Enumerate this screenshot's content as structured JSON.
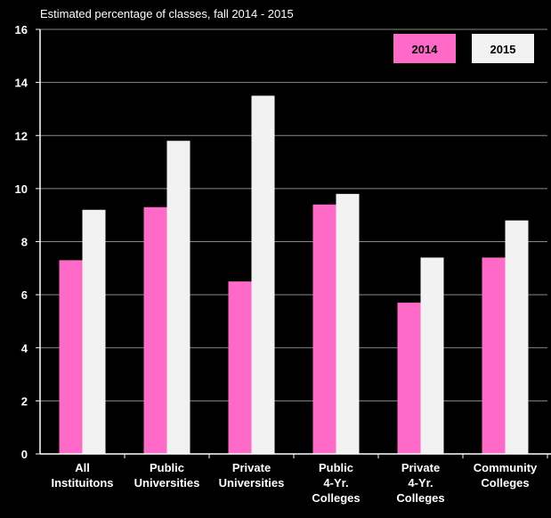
{
  "chart_data": {
    "type": "bar",
    "subtitle": "Estimated percentage of classes, fall 2014 - 2015",
    "categories": [
      [
        "All",
        "Instituitons"
      ],
      [
        "Public",
        "Universities"
      ],
      [
        "Private",
        "Universities"
      ],
      [
        "Public",
        "4-Yr.",
        "Colleges"
      ],
      [
        "Private",
        "4-Yr.",
        "Colleges"
      ],
      [
        "Community",
        "Colleges"
      ]
    ],
    "series": [
      {
        "name": "2014",
        "color": "#ff69c8",
        "values": [
          7.3,
          9.3,
          6.5,
          9.4,
          5.7,
          7.4
        ]
      },
      {
        "name": "2015",
        "color": "#f2f2f2",
        "values": [
          9.2,
          11.8,
          13.5,
          9.8,
          7.4,
          8.8
        ]
      }
    ],
    "ylim": [
      0,
      16
    ],
    "yticks": [
      0,
      2,
      4,
      6,
      8,
      10,
      12,
      14,
      16
    ],
    "grid": true,
    "legend_position": "top-right",
    "colors": {
      "background": "#000000",
      "grid": "#888888",
      "axis": "#ffffff",
      "text": "#ffffff"
    }
  }
}
